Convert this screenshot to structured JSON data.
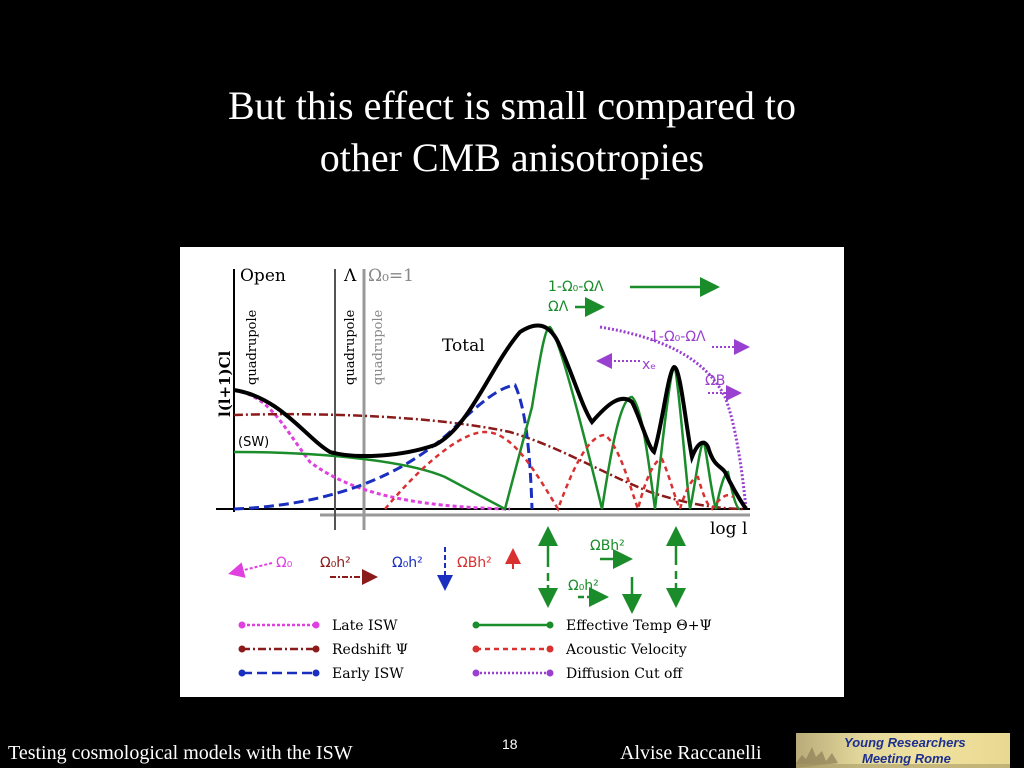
{
  "slide": {
    "title_line1": "But this effect is small compared to",
    "title_line2": "other CMB anisotropies",
    "page_number": "18",
    "footer_left": "Testing cosmological models with the ISW",
    "footer_right": "Alvise Raccanelli",
    "logo_line1": "Young Researchers",
    "logo_line2": "Meeting Rome"
  },
  "figure": {
    "open_label": "Open",
    "lambda_label": "Λ",
    "omega0_eq1": "Ω₀=1",
    "quadrupole": "quadrupole",
    "y_axis_label": "l(l+1)Cl",
    "x_axis_label": "log l",
    "total_label": "Total",
    "sw_label": "(SW)",
    "top_green_1": "1-Ω₀-ΩΛ",
    "top_green_2": "ΩΛ",
    "top_purple_1": "1-Ω₀-ΩΛ",
    "top_purple_2": "xₑ",
    "omega_b_right": "ΩB",
    "bottom_omega0": "Ω₀",
    "bottom_omega0h2_a": "Ω₀h²",
    "bottom_omega0h2_b": "Ω₀h²",
    "bottom_omegabh2_a": "ΩBh²",
    "bottom_omegabh2_b": "ΩBh²",
    "bottom_omega0h2_c": "Ω₀h²",
    "colors": {
      "late_isw": "#e040e0",
      "redshift": "#8b1a1a",
      "early_isw": "#1a2fbf",
      "effective": "#1a8c2a",
      "acoustic": "#d93030",
      "diffusion": "#9a40d0",
      "total": "#000000"
    },
    "legend": [
      {
        "label": "Late ISW"
      },
      {
        "label": "Redshift Ψ"
      },
      {
        "label": "Early ISW"
      },
      {
        "label": "Effective Temp Θ+Ψ"
      },
      {
        "label": "Acoustic Velocity"
      },
      {
        "label": "Diffusion Cut off"
      }
    ]
  }
}
